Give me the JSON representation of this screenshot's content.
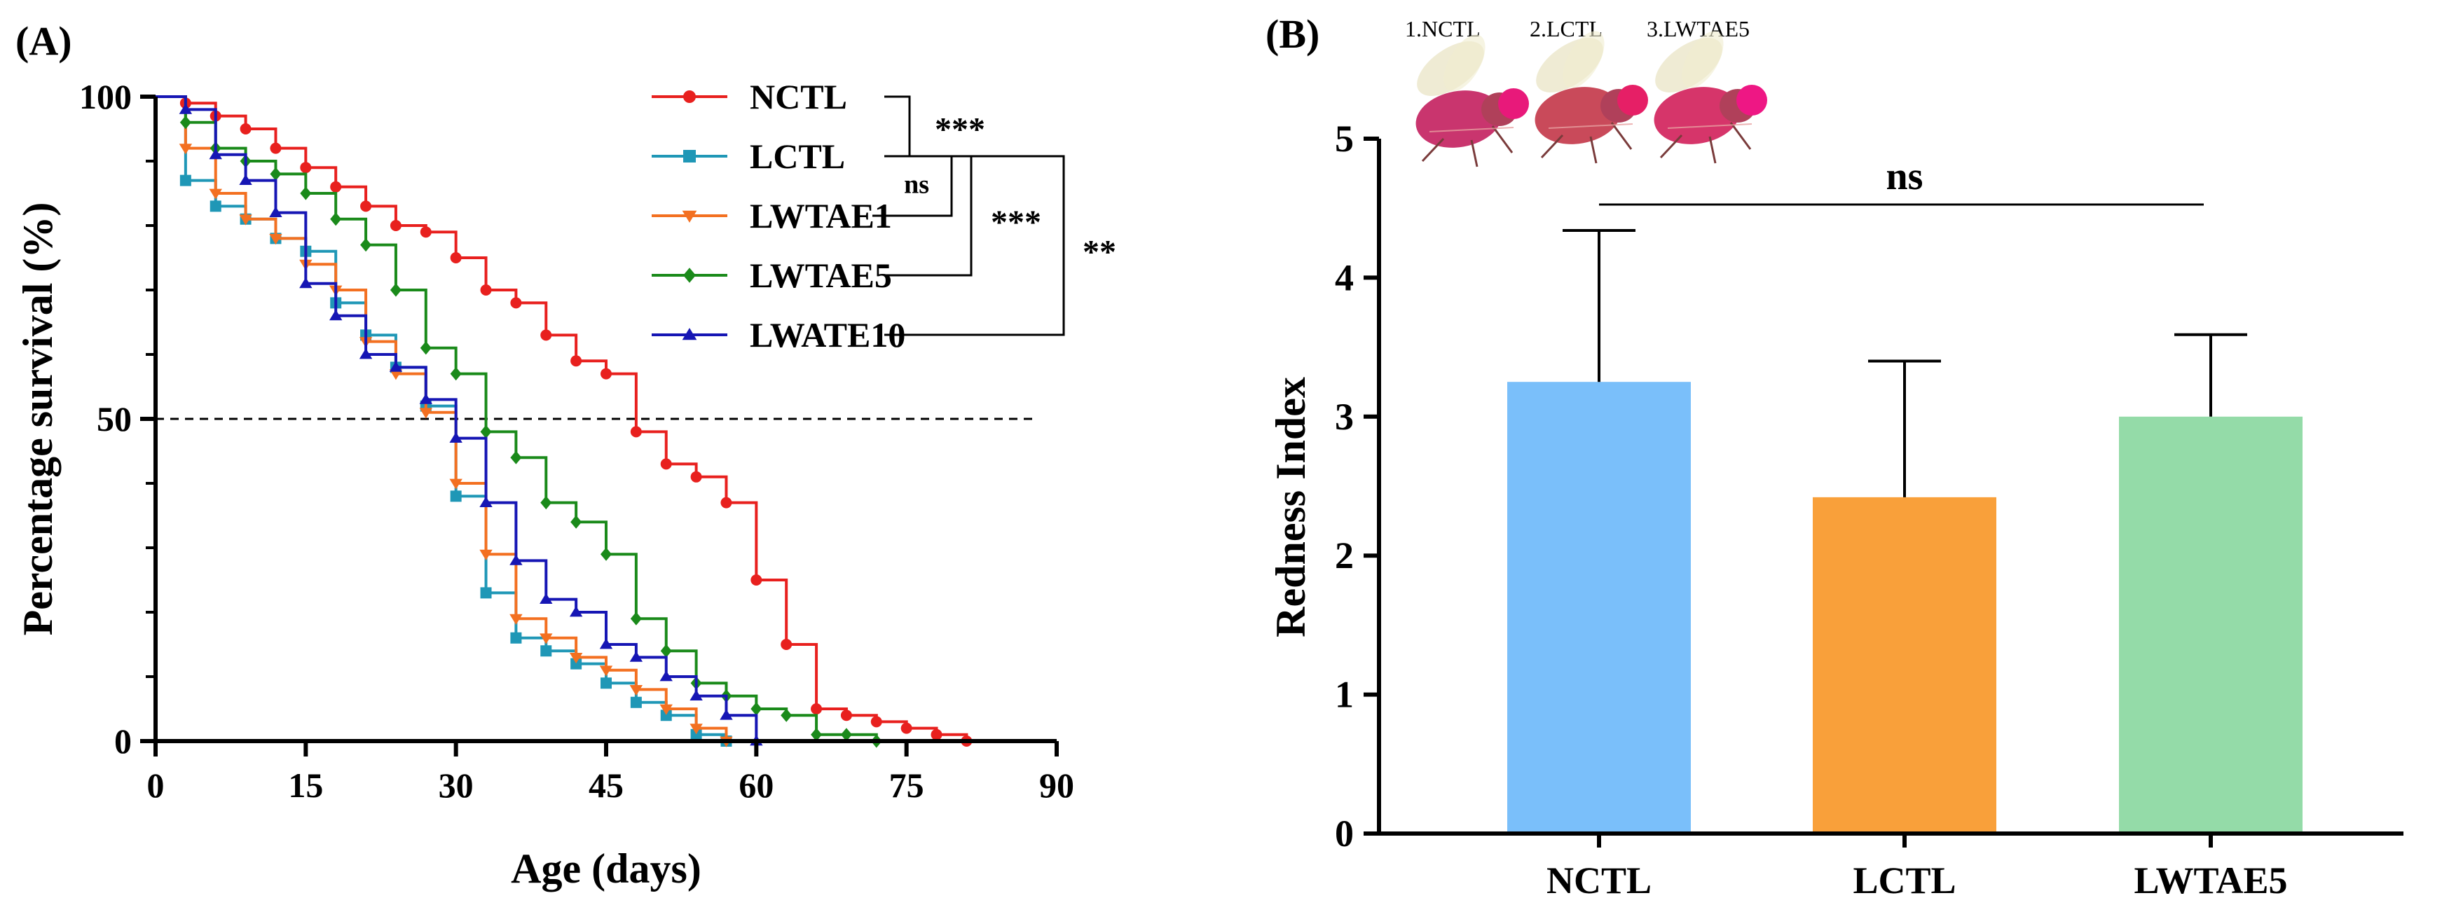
{
  "chart_data": [
    {
      "type": "line",
      "subtype": "kaplan-meier-step",
      "panel_label": "(A)",
      "xlabel": "Age (days)",
      "ylabel": "Percentage survival (%)",
      "xlim": [
        0,
        90
      ],
      "ylim": [
        0,
        100
      ],
      "x_ticks": [
        0,
        15,
        30,
        45,
        60,
        75,
        90
      ],
      "y_ticks": [
        0,
        50,
        100
      ],
      "reference_line": {
        "y": 50,
        "style": "dashed"
      },
      "legend_position": "top-right",
      "series": [
        {
          "name": "NCTL",
          "color": "#e8201e",
          "marker": "circle",
          "x": [
            0,
            3,
            6,
            9,
            12,
            15,
            18,
            21,
            24,
            27,
            30,
            33,
            36,
            39,
            42,
            45,
            48,
            51,
            54,
            57,
            60,
            63,
            66,
            69,
            72,
            75,
            78,
            81
          ],
          "y": [
            100,
            99,
            97,
            95,
            92,
            89,
            86,
            83,
            80,
            79,
            75,
            70,
            68,
            63,
            59,
            57,
            48,
            43,
            41,
            37,
            25,
            15,
            5,
            4,
            3,
            2,
            1,
            0
          ]
        },
        {
          "name": "LCTL",
          "color": "#1f97b6",
          "marker": "square",
          "x": [
            0,
            3,
            6,
            9,
            12,
            15,
            18,
            21,
            24,
            27,
            30,
            33,
            36,
            39,
            42,
            45,
            48,
            51,
            54,
            57
          ],
          "y": [
            100,
            87,
            83,
            81,
            78,
            76,
            68,
            63,
            58,
            52,
            38,
            23,
            16,
            14,
            12,
            9,
            6,
            4,
            1,
            0
          ]
        },
        {
          "name": "LWTAE1",
          "color": "#f37021",
          "marker": "triangle-down",
          "x": [
            0,
            3,
            6,
            9,
            12,
            15,
            18,
            21,
            24,
            27,
            30,
            33,
            36,
            39,
            42,
            45,
            48,
            51,
            54,
            57
          ],
          "y": [
            100,
            92,
            85,
            81,
            78,
            74,
            70,
            62,
            57,
            51,
            40,
            29,
            19,
            16,
            13,
            11,
            8,
            5,
            2,
            0
          ]
        },
        {
          "name": "LWTAE5",
          "color": "#1a8a1a",
          "marker": "diamond",
          "x": [
            0,
            3,
            6,
            9,
            12,
            15,
            18,
            21,
            24,
            27,
            30,
            33,
            36,
            39,
            42,
            45,
            48,
            51,
            54,
            57,
            60,
            63,
            66,
            69,
            72
          ],
          "y": [
            100,
            96,
            92,
            90,
            88,
            85,
            81,
            77,
            70,
            61,
            57,
            48,
            44,
            37,
            34,
            29,
            19,
            14,
            9,
            7,
            5,
            4,
            1,
            1,
            0
          ]
        },
        {
          "name": "LWATE10",
          "color": "#1616b4",
          "marker": "triangle-up",
          "x": [
            0,
            3,
            6,
            9,
            12,
            15,
            18,
            21,
            24,
            27,
            30,
            33,
            36,
            39,
            42,
            45,
            48,
            51,
            54,
            57,
            60
          ],
          "y": [
            100,
            98,
            91,
            87,
            82,
            71,
            66,
            60,
            58,
            53,
            47,
            37,
            28,
            22,
            20,
            15,
            13,
            10,
            7,
            4,
            0
          ]
        }
      ],
      "significance": [
        {
          "between": [
            "NCTL",
            "LCTL"
          ],
          "label": "***"
        },
        {
          "between": [
            "LCTL",
            "LWTAE1"
          ],
          "label": "ns"
        },
        {
          "between": [
            "LCTL",
            "LWTAE5"
          ],
          "label": "***"
        },
        {
          "between": [
            "LCTL",
            "LWATE10"
          ],
          "label": "**"
        }
      ]
    },
    {
      "type": "bar",
      "panel_label": "(B)",
      "xlabel": "",
      "ylabel": "Redness Index",
      "ylim": [
        0,
        5
      ],
      "y_ticks": [
        0,
        1,
        2,
        3,
        4,
        5
      ],
      "categories": [
        "NCTL",
        "LCTL",
        "LWTAE5"
      ],
      "values": [
        3.25,
        2.42,
        3.0
      ],
      "error_upper": [
        4.34,
        3.4,
        3.59
      ],
      "colors": [
        "#7abffa",
        "#f9a03a",
        "#94dba8"
      ],
      "significance": [
        {
          "between": [
            "NCTL",
            "LWTAE5"
          ],
          "label": "ns"
        }
      ],
      "fly_images": [
        {
          "label": "1.NCTL",
          "body_color": "#c9356e",
          "eye_color": "#e8197a",
          "icon": "fruit-fly-icon"
        },
        {
          "label": "2.LCTL",
          "body_color": "#c94a5a",
          "eye_color": "#e61f66",
          "icon": "fruit-fly-icon"
        },
        {
          "label": "3.LWTAE5",
          "body_color": "#d6356a",
          "eye_color": "#ee1784",
          "icon": "fruit-fly-icon"
        }
      ]
    }
  ]
}
